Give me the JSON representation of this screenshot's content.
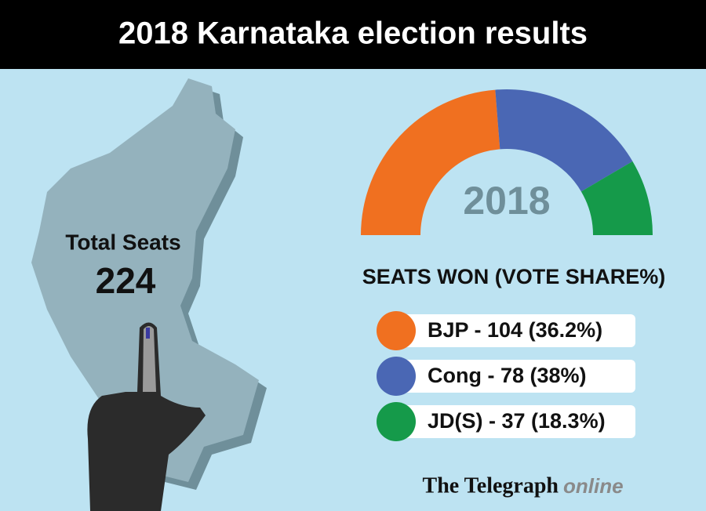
{
  "title": "2018 Karnataka election results",
  "total_label": "Total Seats",
  "total_value": 224,
  "chart_data": {
    "type": "pie",
    "center_label": "2018",
    "legend_title": "SEATS WON (VOTE SHARE%)",
    "categories": [
      "BJP - 104  (36.2%)",
      "Cong - 78 (38%)",
      "JD(S) - 37 (18.3%)"
    ],
    "values": [
      104,
      78,
      37
    ],
    "colors": [
      "#f07020",
      "#4a67b4",
      "#159a4a"
    ]
  },
  "footer": {
    "brand": "The Telegraph",
    "suffix": "online"
  }
}
